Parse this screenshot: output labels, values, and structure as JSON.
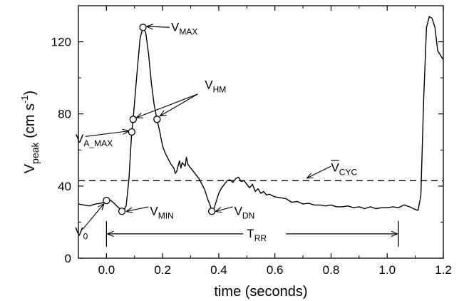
{
  "chart_data": {
    "type": "line",
    "xlabel": "time (seconds)",
    "ylabel_main": "V",
    "ylabel_sub": "peak",
    "ylabel_unit": " (cm s",
    "ylabel_exp": "-1",
    "ylabel_close": ")",
    "xlim": [
      -0.1,
      1.2
    ],
    "ylim": [
      0,
      140
    ],
    "grid": false,
    "x_ticks": [
      0.0,
      0.2,
      0.4,
      0.6,
      0.8,
      1.0,
      1.2
    ],
    "x_tick_labels": [
      "0.0",
      "0.2",
      "0.4",
      "0.6",
      "0.8",
      "1.0",
      "1.2"
    ],
    "y_ticks": [
      0,
      40,
      80,
      120
    ],
    "y_tick_labels": [
      "0",
      "40",
      "80",
      "120"
    ],
    "series": [
      {
        "style": "solid",
        "points": [
          [
            -0.1,
            30
          ],
          [
            -0.08,
            29.5
          ],
          [
            -0.06,
            29
          ],
          [
            -0.04,
            30
          ],
          [
            -0.02,
            30.5
          ],
          [
            -0.01,
            31
          ],
          [
            0.0,
            32
          ],
          [
            0.01,
            32.5
          ],
          [
            0.02,
            31.5
          ],
          [
            0.03,
            30
          ],
          [
            0.04,
            28.5
          ],
          [
            0.05,
            27
          ],
          [
            0.06,
            26
          ],
          [
            0.07,
            29
          ],
          [
            0.08,
            44
          ],
          [
            0.09,
            70
          ],
          [
            0.095,
            77
          ],
          [
            0.11,
            105
          ],
          [
            0.12,
            122
          ],
          [
            0.13,
            128
          ],
          [
            0.14,
            125
          ],
          [
            0.15,
            113
          ],
          [
            0.16,
            97
          ],
          [
            0.17,
            85
          ],
          [
            0.18,
            77
          ],
          [
            0.19,
            70
          ],
          [
            0.2,
            62
          ],
          [
            0.21,
            58
          ],
          [
            0.22,
            55
          ],
          [
            0.23,
            52
          ],
          [
            0.24,
            50
          ],
          [
            0.245,
            47
          ],
          [
            0.25,
            48
          ],
          [
            0.26,
            54
          ],
          [
            0.265,
            50
          ],
          [
            0.27,
            53
          ],
          [
            0.28,
            51
          ],
          [
            0.285,
            56
          ],
          [
            0.29,
            52
          ],
          [
            0.3,
            50
          ],
          [
            0.31,
            48
          ],
          [
            0.32,
            46
          ],
          [
            0.33,
            44
          ],
          [
            0.34,
            41
          ],
          [
            0.35,
            38
          ],
          [
            0.36,
            33
          ],
          [
            0.37,
            29
          ],
          [
            0.375,
            26
          ],
          [
            0.38,
            26
          ],
          [
            0.39,
            31
          ],
          [
            0.4,
            36
          ],
          [
            0.41,
            39
          ],
          [
            0.42,
            41
          ],
          [
            0.43,
            43
          ],
          [
            0.44,
            43.5
          ],
          [
            0.45,
            42
          ],
          [
            0.46,
            44
          ],
          [
            0.47,
            45
          ],
          [
            0.48,
            42.5
          ],
          [
            0.49,
            43
          ],
          [
            0.5,
            41
          ],
          [
            0.51,
            39
          ],
          [
            0.52,
            41
          ],
          [
            0.53,
            37
          ],
          [
            0.54,
            38.5
          ],
          [
            0.55,
            36
          ],
          [
            0.56,
            37
          ],
          [
            0.57,
            35
          ],
          [
            0.58,
            35.5
          ],
          [
            0.6,
            34
          ],
          [
            0.62,
            33.5
          ],
          [
            0.64,
            33
          ],
          [
            0.66,
            31
          ],
          [
            0.68,
            31.5
          ],
          [
            0.7,
            30
          ],
          [
            0.72,
            30.5
          ],
          [
            0.74,
            29.5
          ],
          [
            0.76,
            29.5
          ],
          [
            0.78,
            29
          ],
          [
            0.8,
            29.5
          ],
          [
            0.82,
            28.5
          ],
          [
            0.84,
            28.5
          ],
          [
            0.86,
            29
          ],
          [
            0.88,
            28
          ],
          [
            0.9,
            28.5
          ],
          [
            0.92,
            27.5
          ],
          [
            0.94,
            28.5
          ],
          [
            0.96,
            27.5
          ],
          [
            0.98,
            28
          ],
          [
            1.0,
            28
          ],
          [
            1.02,
            28.5
          ],
          [
            1.04,
            28
          ],
          [
            1.06,
            29.5
          ],
          [
            1.08,
            28.5
          ],
          [
            1.1,
            27
          ],
          [
            1.11,
            26.5
          ],
          [
            1.12,
            35
          ],
          [
            1.13,
            88
          ],
          [
            1.14,
            128
          ],
          [
            1.15,
            134
          ],
          [
            1.16,
            133
          ],
          [
            1.17,
            128
          ],
          [
            1.18,
            115
          ],
          [
            1.2,
            110
          ]
        ]
      },
      {
        "style": "dashed",
        "points": [
          [
            -0.1,
            43
          ],
          [
            1.2,
            43
          ]
        ]
      }
    ],
    "markers": [
      [
        0.0,
        32
      ],
      [
        0.055,
        26
      ],
      [
        0.09,
        70
      ],
      [
        0.095,
        77
      ],
      [
        0.13,
        128
      ],
      [
        0.18,
        77
      ],
      [
        0.375,
        26
      ]
    ],
    "annotations": [
      {
        "main": "V",
        "sub": "MAX",
        "overline": false,
        "label_at": [
          0.23,
          126
        ],
        "arrow_from": [
          0.225,
          128
        ],
        "arrow_to": [
          0.145,
          128.5
        ]
      },
      {
        "main": "V",
        "sub": "HM",
        "overline": false,
        "label_at": [
          0.35,
          94
        ],
        "arrow_from": [
          0.325,
          91
        ],
        "arrow_to": [
          0.108,
          78
        ]
      },
      {
        "main": "",
        "sub": "",
        "overline": false,
        "label_at": [
          0.0,
          0.0
        ],
        "arrow_from": [
          0.325,
          91
        ],
        "arrow_to": [
          0.192,
          79
        ]
      },
      {
        "main": "V",
        "sub": "A_MAX",
        "overline": false,
        "label_at": [
          -0.11,
          64
        ],
        "arrow_from": [
          -0.075,
          67.5
        ],
        "arrow_to": [
          0.078,
          70.5
        ]
      },
      {
        "main": "V",
        "sub": "CYC",
        "overline": true,
        "label_at": [
          0.8,
          48
        ],
        "arrow_from": [
          0.8,
          51
        ],
        "arrow_to": [
          0.715,
          44.5
        ]
      },
      {
        "main": "V",
        "sub": "MIN",
        "overline": false,
        "label_at": [
          0.155,
          24
        ],
        "arrow_from": [
          0.15,
          28.5
        ],
        "arrow_to": [
          0.072,
          26
        ]
      },
      {
        "main": "V",
        "sub": "DN",
        "overline": false,
        "label_at": [
          0.455,
          24
        ],
        "arrow_from": [
          0.45,
          28.5
        ],
        "arrow_to": [
          0.39,
          26
        ]
      },
      {
        "main": "V",
        "sub": "0",
        "overline": false,
        "label_at": [
          -0.112,
          12.5
        ],
        "arrow_from": [
          -0.085,
          16
        ],
        "arrow_to": [
          -0.01,
          30
        ]
      }
    ],
    "interval": {
      "main": "T",
      "sub": "RR",
      "x_start": 0.0,
      "x_end": 1.04,
      "y": 13.5,
      "label_at": [
        0.5,
        11.5
      ]
    }
  }
}
